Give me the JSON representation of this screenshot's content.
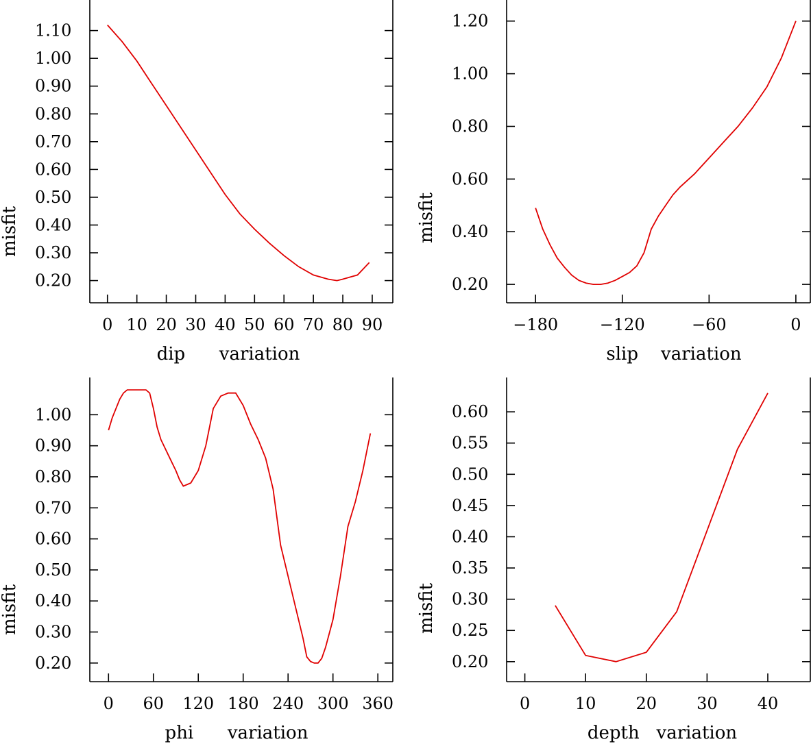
{
  "page": {
    "background": "#ffffff"
  },
  "chart_data": [
    {
      "type": "line",
      "title": "",
      "xlabel": "dip      variation",
      "ylabel": "misfit",
      "xlim": [
        -6,
        97
      ],
      "ylim": [
        0.12,
        1.21
      ],
      "xticks": [
        0,
        10,
        20,
        30,
        40,
        50,
        60,
        70,
        80,
        90
      ],
      "xtick_labels": [
        "0",
        "10",
        "20",
        "30",
        "40",
        "50",
        "60",
        "70",
        "80",
        "90"
      ],
      "yticks": [
        0.2,
        0.3,
        0.4,
        0.5,
        0.6,
        0.7,
        0.8,
        0.9,
        1.0,
        1.1
      ],
      "ytick_labels": [
        "0.20",
        "0.30",
        "0.40",
        "0.50",
        "0.60",
        "0.70",
        "0.80",
        "0.90",
        "1.00",
        "1.10"
      ],
      "grid": false,
      "line_color": "#e00000",
      "series": [
        {
          "name": "misfit",
          "x": [
            0,
            5,
            10,
            15,
            20,
            25,
            30,
            35,
            40,
            45,
            50,
            55,
            60,
            65,
            70,
            75,
            78,
            80,
            85,
            89
          ],
          "y": [
            1.12,
            1.06,
            0.99,
            0.91,
            0.83,
            0.75,
            0.67,
            0.59,
            0.51,
            0.44,
            0.385,
            0.335,
            0.29,
            0.25,
            0.22,
            0.205,
            0.2,
            0.205,
            0.22,
            0.265
          ]
        }
      ]
    },
    {
      "type": "line",
      "title": "",
      "xlabel": "slip    variation",
      "ylabel": "misfit",
      "xlim": [
        -200,
        10
      ],
      "ylim": [
        0.13,
        1.28
      ],
      "xticks": [
        -180,
        -120,
        -60,
        0
      ],
      "xtick_labels": [
        "−180",
        "−120",
        "−60",
        "0"
      ],
      "yticks": [
        0.2,
        0.4,
        0.6,
        0.8,
        1.0,
        1.2
      ],
      "ytick_labels": [
        "0.20",
        "0.40",
        "0.60",
        "0.80",
        "1.00",
        "1.20"
      ],
      "grid": false,
      "line_color": "#e00000",
      "series": [
        {
          "name": "misfit",
          "x": [
            -180,
            -175,
            -170,
            -165,
            -160,
            -155,
            -150,
            -145,
            -140,
            -135,
            -130,
            -125,
            -120,
            -115,
            -110,
            -105,
            -100,
            -95,
            -90,
            -85,
            -80,
            -70,
            -60,
            -50,
            -40,
            -30,
            -20,
            -10,
            0
          ],
          "y": [
            0.49,
            0.41,
            0.35,
            0.3,
            0.265,
            0.235,
            0.215,
            0.205,
            0.2,
            0.2,
            0.205,
            0.215,
            0.23,
            0.245,
            0.27,
            0.32,
            0.41,
            0.46,
            0.5,
            0.54,
            0.57,
            0.62,
            0.68,
            0.74,
            0.8,
            0.87,
            0.95,
            1.06,
            1.2
          ]
        }
      ]
    },
    {
      "type": "line",
      "title": "",
      "xlabel": "phi      variation",
      "ylabel": "misfit",
      "xlim": [
        -25,
        380
      ],
      "ylim": [
        0.14,
        1.12
      ],
      "xticks": [
        0,
        60,
        120,
        180,
        240,
        300,
        360
      ],
      "xtick_labels": [
        "0",
        "60",
        "120",
        "180",
        "240",
        "300",
        "360"
      ],
      "yticks": [
        0.2,
        0.3,
        0.4,
        0.5,
        0.6,
        0.7,
        0.8,
        0.9,
        1.0
      ],
      "ytick_labels": [
        "0.20",
        "0.30",
        "0.40",
        "0.50",
        "0.60",
        "0.70",
        "0.80",
        "0.90",
        "1.00"
      ],
      "grid": false,
      "line_color": "#e00000",
      "series": [
        {
          "name": "misfit",
          "x": [
            0,
            5,
            10,
            15,
            20,
            25,
            30,
            40,
            50,
            55,
            60,
            65,
            70,
            80,
            90,
            95,
            100,
            110,
            120,
            130,
            140,
            150,
            160,
            170,
            180,
            190,
            200,
            210,
            220,
            230,
            240,
            250,
            260,
            265,
            270,
            275,
            280,
            285,
            290,
            300,
            310,
            320,
            330,
            340,
            345,
            350
          ],
          "y": [
            0.95,
            0.99,
            1.02,
            1.05,
            1.07,
            1.08,
            1.08,
            1.08,
            1.08,
            1.07,
            1.02,
            0.96,
            0.92,
            0.87,
            0.82,
            0.79,
            0.77,
            0.78,
            0.82,
            0.9,
            1.02,
            1.06,
            1.07,
            1.07,
            1.03,
            0.97,
            0.92,
            0.86,
            0.76,
            0.58,
            0.48,
            0.38,
            0.28,
            0.22,
            0.205,
            0.2,
            0.2,
            0.215,
            0.25,
            0.34,
            0.48,
            0.64,
            0.72,
            0.82,
            0.88,
            0.94
          ]
        }
      ]
    },
    {
      "type": "line",
      "title": "",
      "xlabel": "depth   variation",
      "ylabel": "misfit",
      "xlim": [
        -3,
        47
      ],
      "ylim": [
        0.168,
        0.655
      ],
      "xticks": [
        0,
        10,
        20,
        30,
        40
      ],
      "xtick_labels": [
        "0",
        "10",
        "20",
        "30",
        "40"
      ],
      "yticks": [
        0.2,
        0.25,
        0.3,
        0.35,
        0.4,
        0.45,
        0.5,
        0.55,
        0.6
      ],
      "ytick_labels": [
        "0.20",
        "0.25",
        "0.30",
        "0.35",
        "0.40",
        "0.45",
        "0.50",
        "0.55",
        "0.60"
      ],
      "grid": false,
      "line_color": "#e00000",
      "series": [
        {
          "name": "misfit",
          "x": [
            5,
            10,
            15,
            20,
            25,
            30,
            35,
            40
          ],
          "y": [
            0.29,
            0.21,
            0.2,
            0.215,
            0.28,
            0.41,
            0.54,
            0.63
          ]
        }
      ]
    }
  ]
}
